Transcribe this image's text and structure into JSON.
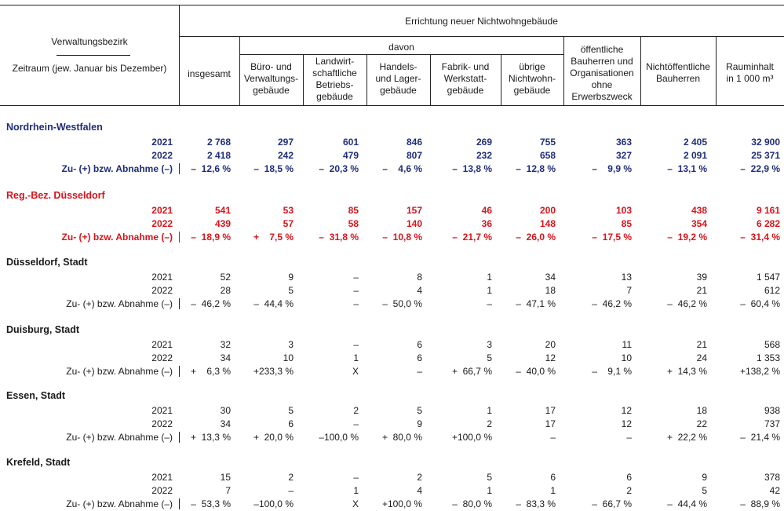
{
  "header": {
    "stub_title": "Verwaltungsbezirk",
    "stub_subtitle": "Zeitraum (jew. Januar bis Dezember)",
    "top_title": "Errichtung neuer Nichtwohngebäude",
    "davon": "davon",
    "columns": [
      "insgesamt",
      "Büro- und\nVerwaltungs-\ngebäude",
      "Landwirt-\nschaftliche\nBetriebs-\ngebäude",
      "Handels-\nund Lager-\ngebäude",
      "Fabrik- und\nWerkstatt-\ngebäude",
      "übrige\nNichtwohn-\ngebäude",
      "öffentliche\nBauherren und\nOrganisationen\nohne\nErwerbszweck",
      "Nichtöffentliche\nBauherren",
      "Rauminhalt\nin 1 000 m³"
    ]
  },
  "sections": [
    {
      "title": "Nordrhein-Westfalen",
      "style": "blue",
      "rows": [
        {
          "label": "2021",
          "values": [
            "2 768",
            "297",
            "601",
            "846",
            "269",
            "755",
            "363",
            "2 405",
            "32 900"
          ]
        },
        {
          "label": "2022",
          "values": [
            "2 418",
            "242",
            "479",
            "807",
            "232",
            "658",
            "327",
            "2 091",
            "25 371"
          ]
        },
        {
          "label": "Zu- (+) bzw. Abnahme (–)",
          "values": [
            "–  12,6 %",
            "–  18,5 %",
            "–  20,3 %",
            "–    4,6 %",
            "–  13,8 %",
            "–  12,8 %",
            "–    9,9 %",
            "–  13,1 %",
            "–  22,9 %"
          ]
        }
      ]
    },
    {
      "title": "Reg.-Bez. Düsseldorf",
      "style": "red",
      "rows": [
        {
          "label": "2021",
          "values": [
            "541",
            "53",
            "85",
            "157",
            "46",
            "200",
            "103",
            "438",
            "9 161"
          ]
        },
        {
          "label": "2022",
          "values": [
            "439",
            "57",
            "58",
            "140",
            "36",
            "148",
            "85",
            "354",
            "6 282"
          ]
        },
        {
          "label": "Zu- (+) bzw. Abnahme (–)",
          "values": [
            "–  18,9 %",
            "+    7,5 %",
            "–  31,8 %",
            "–  10,8 %",
            "–  21,7 %",
            "–  26,0 %",
            "–  17,5 %",
            "–  19,2 %",
            "–  31,4 %"
          ]
        }
      ]
    },
    {
      "title": "Düsseldorf, Stadt",
      "style": "plain",
      "rows": [
        {
          "label": "2021",
          "values": [
            "52",
            "9",
            "–",
            "8",
            "1",
            "34",
            "13",
            "39",
            "1 547"
          ]
        },
        {
          "label": "2022",
          "values": [
            "28",
            "5",
            "–",
            "4",
            "1",
            "18",
            "7",
            "21",
            "612"
          ]
        },
        {
          "label": "Zu- (+) bzw. Abnahme (–)",
          "values": [
            "–  46,2 %",
            "–  44,4 %",
            "–",
            "–  50,0 %",
            "–",
            "–  47,1 %",
            "–  46,2 %",
            "–  46,2 %",
            "–  60,4 %"
          ]
        }
      ]
    },
    {
      "title": "Duisburg, Stadt",
      "style": "plain",
      "rows": [
        {
          "label": "2021",
          "values": [
            "32",
            "3",
            "–",
            "6",
            "3",
            "20",
            "11",
            "21",
            "568"
          ]
        },
        {
          "label": "2022",
          "values": [
            "34",
            "10",
            "1",
            "6",
            "5",
            "12",
            "10",
            "24",
            "1 353"
          ]
        },
        {
          "label": "Zu- (+) bzw. Abnahme (–)",
          "values": [
            "+    6,3 %",
            "+233,3 %",
            "X",
            "–",
            "+  66,7 %",
            "–  40,0 %",
            "–    9,1 %",
            "+  14,3 %",
            "+138,2 %"
          ]
        }
      ]
    },
    {
      "title": "Essen, Stadt",
      "style": "plain",
      "rows": [
        {
          "label": "2021",
          "values": [
            "30",
            "5",
            "2",
            "5",
            "1",
            "17",
            "12",
            "18",
            "938"
          ]
        },
        {
          "label": "2022",
          "values": [
            "34",
            "6",
            "–",
            "9",
            "2",
            "17",
            "12",
            "22",
            "737"
          ]
        },
        {
          "label": "Zu- (+) bzw. Abnahme (–)",
          "values": [
            "+  13,3 %",
            "+  20,0 %",
            "–100,0 %",
            "+  80,0 %",
            "+100,0 %",
            "–",
            "–",
            "+  22,2 %",
            "–  21,4 %"
          ]
        }
      ]
    },
    {
      "title": "Krefeld, Stadt",
      "style": "plain",
      "rows": [
        {
          "label": "2021",
          "values": [
            "15",
            "2",
            "–",
            "2",
            "5",
            "6",
            "6",
            "9",
            "378"
          ]
        },
        {
          "label": "2022",
          "values": [
            "7",
            "–",
            "1",
            "4",
            "1",
            "1",
            "2",
            "5",
            "42"
          ]
        },
        {
          "label": "Zu- (+) bzw. Abnahme (–)",
          "values": [
            "–  53,3 %",
            "–100,0 %",
            "X",
            "+100,0 %",
            "–  80,0 %",
            "–  83,3 %",
            "–  66,7 %",
            "–  44,4 %",
            "–  88,9 %"
          ]
        }
      ]
    }
  ]
}
